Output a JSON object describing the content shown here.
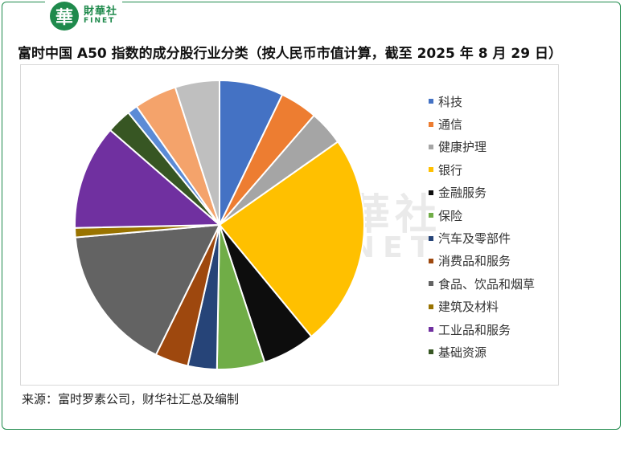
{
  "header": {
    "logo_char": "華",
    "brand_cn": "財華社",
    "brand_en": "FINET"
  },
  "title": "富时中国 A50 指数的成分股行业分类（按人民币市值计算，截至 2025 年 8 月 29 日）",
  "watermark": {
    "cn": "財華社",
    "en": "FINET"
  },
  "source": "来源：富时罗素公司，财华社汇总及编制",
  "chart_data": {
    "type": "pie",
    "title": "富时中国 A50 指数的成分股行业分类（按人民币市值计算，截至 2025 年 8 月 29 日）",
    "legend_position": "right",
    "slices": [
      {
        "label": "科技",
        "value": 7.5,
        "color": "#4472C4"
      },
      {
        "label": "通信",
        "value": 4.4,
        "color": "#ED7D31"
      },
      {
        "label": "健康护理",
        "value": 4.1,
        "color": "#A5A5A5"
      },
      {
        "label": "银行",
        "value": 25.0,
        "color": "#FFC000"
      },
      {
        "label": "金融服务",
        "value": 6.2,
        "color": "#0D0D0D"
      },
      {
        "label": "保险",
        "value": 5.6,
        "color": "#70AD47"
      },
      {
        "label": "汽车及零部件",
        "value": 3.4,
        "color": "#264478"
      },
      {
        "label": "消费品和服务",
        "value": 3.9,
        "color": "#9E480E"
      },
      {
        "label": "食品、饮品和烟草",
        "value": 17.2,
        "color": "#636363"
      },
      {
        "label": "建筑及材料",
        "value": 1.1,
        "color": "#997300"
      },
      {
        "label": "工业品和服务",
        "value": 12.3,
        "color": "#7030A0"
      },
      {
        "label": "基础资源",
        "value": 2.9,
        "color": "#375623"
      },
      {
        "label": "",
        "value": 1.2,
        "color": "#5B8BD6"
      },
      {
        "label": "",
        "value": 5.0,
        "color": "#F4A36B"
      },
      {
        "label": "",
        "value": 5.2,
        "color": "#BFBFBF"
      }
    ]
  }
}
